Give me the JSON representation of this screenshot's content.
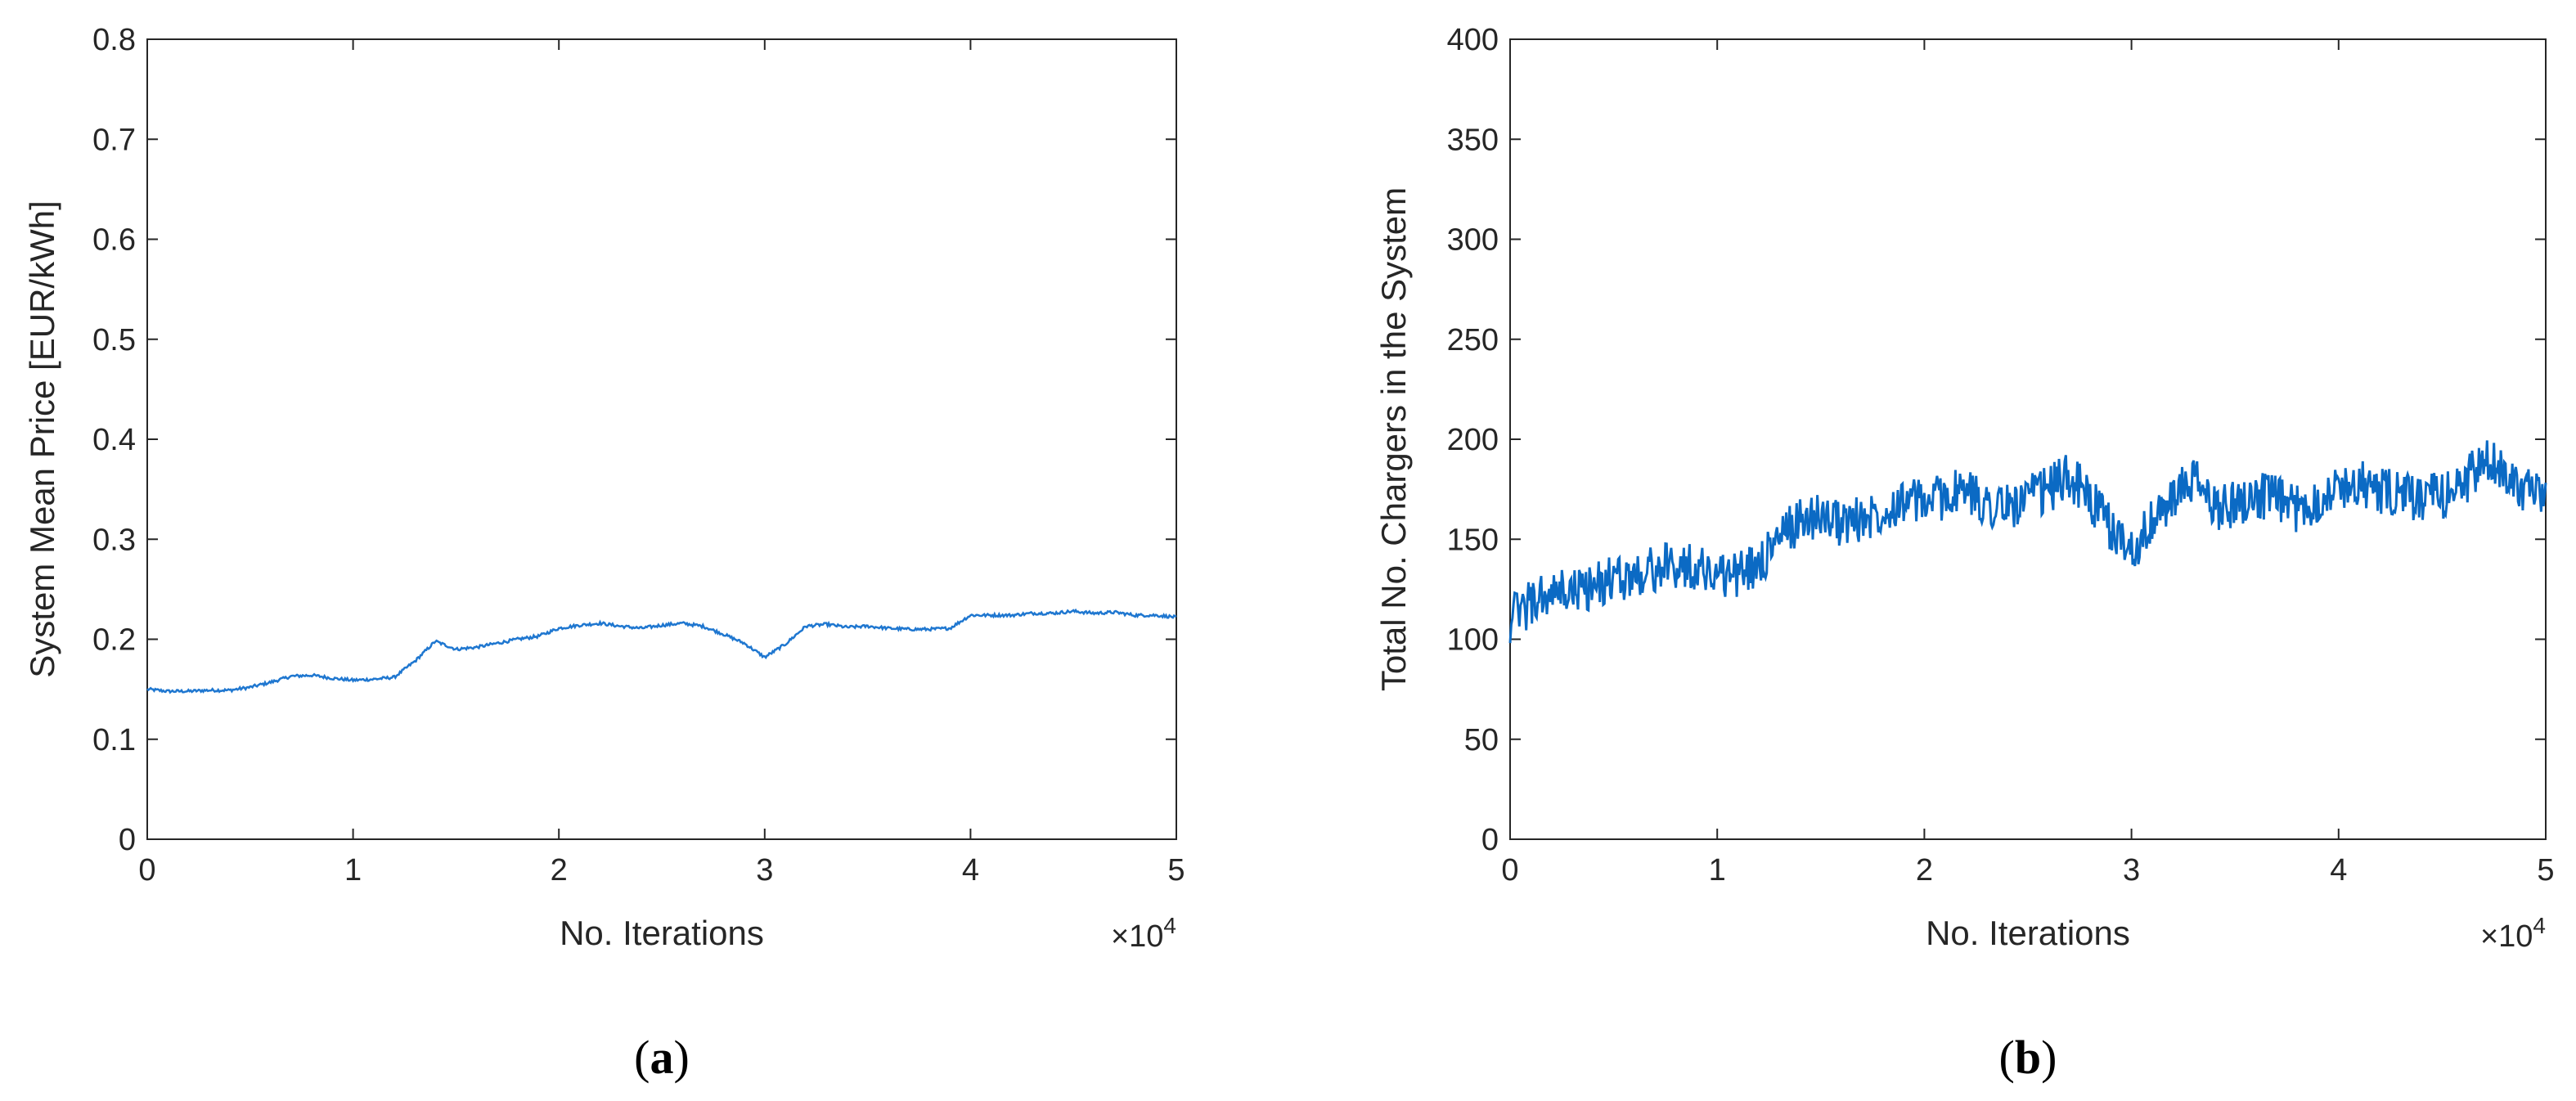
{
  "chart_data": [
    {
      "type": "line",
      "caption": "(a)",
      "xlabel": "No. Iterations",
      "ylabel": "System Mean Price [EUR/kWh]",
      "x_multiplier": "×10^4",
      "xlim": [
        0,
        50000
      ],
      "ylim": [
        0,
        0.8
      ],
      "xticks": [
        0,
        10000,
        20000,
        30000,
        40000,
        50000
      ],
      "xtick_labels": [
        "0",
        "1",
        "2",
        "3",
        "4",
        "5"
      ],
      "yticks": [
        0,
        0.1,
        0.2,
        0.3,
        0.4,
        0.5,
        0.6,
        0.7,
        0.8
      ],
      "ytick_labels": [
        "0",
        "0.1",
        "0.2",
        "0.3",
        "0.4",
        "0.5",
        "0.6",
        "0.7",
        "0.8"
      ],
      "grid": false,
      "color": "#1f77d0",
      "x": [
        0,
        1000,
        2000,
        3000,
        4000,
        5000,
        6000,
        7000,
        8000,
        9000,
        10000,
        11000,
        12000,
        13000,
        14000,
        15000,
        16000,
        17000,
        18000,
        19000,
        20000,
        21000,
        22000,
        23000,
        24000,
        25000,
        26000,
        27000,
        28000,
        29000,
        30000,
        31000,
        32000,
        33000,
        34000,
        35000,
        36000,
        37000,
        38000,
        39000,
        40000,
        41000,
        42000,
        43000,
        44000,
        45000,
        46000,
        47000,
        48000,
        49000,
        50000
      ],
      "y": [
        0.15,
        0.148,
        0.148,
        0.149,
        0.149,
        0.152,
        0.157,
        0.163,
        0.164,
        0.161,
        0.159,
        0.16,
        0.162,
        0.178,
        0.198,
        0.19,
        0.192,
        0.196,
        0.2,
        0.203,
        0.211,
        0.214,
        0.216,
        0.213,
        0.211,
        0.214,
        0.216,
        0.213,
        0.205,
        0.196,
        0.182,
        0.195,
        0.213,
        0.215,
        0.212,
        0.213,
        0.211,
        0.21,
        0.21,
        0.211,
        0.224,
        0.224,
        0.224,
        0.226,
        0.226,
        0.228,
        0.226,
        0.227,
        0.224,
        0.224,
        0.222
      ]
    },
    {
      "type": "line",
      "caption": "(b)",
      "xlabel": "No. Iterations",
      "ylabel": "Total No. Chargers in the System",
      "x_multiplier": "×10^4",
      "xlim": [
        0,
        50000
      ],
      "ylim": [
        0,
        400
      ],
      "xticks": [
        0,
        10000,
        20000,
        30000,
        40000,
        50000
      ],
      "xtick_labels": [
        "0",
        "1",
        "2",
        "3",
        "4",
        "5"
      ],
      "yticks": [
        0,
        50,
        100,
        150,
        200,
        250,
        300,
        350,
        400
      ],
      "ytick_labels": [
        "0",
        "50",
        "100",
        "150",
        "200",
        "250",
        "300",
        "350",
        "400"
      ],
      "grid": false,
      "color": "#0b6ac4",
      "x": [
        0,
        1000,
        2000,
        3000,
        4000,
        5000,
        6000,
        7000,
        8000,
        9000,
        10000,
        11000,
        12000,
        13000,
        14000,
        15000,
        16000,
        17000,
        18000,
        19000,
        20000,
        21000,
        22000,
        23000,
        24000,
        25000,
        26000,
        27000,
        28000,
        29000,
        30000,
        31000,
        32000,
        33000,
        34000,
        35000,
        36000,
        37000,
        38000,
        39000,
        40000,
        41000,
        42000,
        43000,
        44000,
        45000,
        46000,
        47000,
        48000,
        49000,
        50000
      ],
      "y": [
        110,
        118,
        122,
        124,
        126,
        130,
        132,
        135,
        137,
        136,
        133,
        132,
        138,
        150,
        160,
        162,
        158,
        160,
        165,
        170,
        168,
        172,
        174,
        168,
        166,
        170,
        175,
        182,
        170,
        155,
        145,
        158,
        170,
        180,
        166,
        168,
        172,
        170,
        165,
        170,
        176,
        178,
        174,
        172,
        170,
        172,
        178,
        188,
        185,
        175,
        168
      ],
      "noise_amplitude": 12
    }
  ]
}
